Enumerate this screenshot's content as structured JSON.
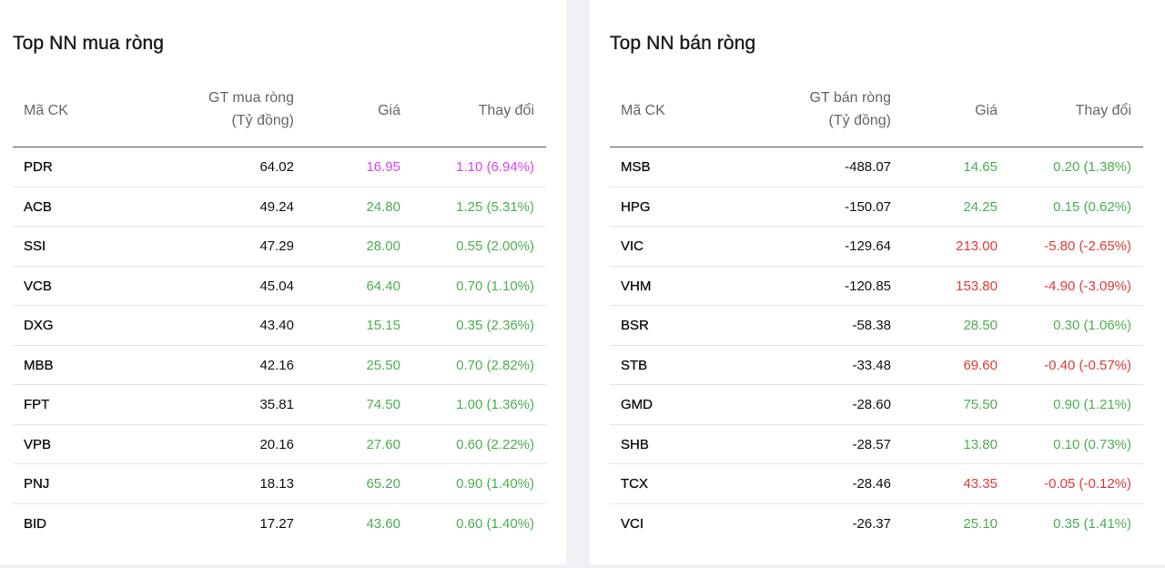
{
  "colors": {
    "up": "#4caf50",
    "down": "#e53935",
    "ceiling": "#e040fb"
  },
  "buy": {
    "title": "Top NN mua ròng",
    "headers": {
      "symbol": "Mã CK",
      "value_line1": "GT mua ròng",
      "value_line2": "(Tỷ đồng)",
      "price": "Giá",
      "change": "Thay đổi"
    },
    "rows": [
      {
        "symbol": "PDR",
        "value": "64.02",
        "price": "16.95",
        "change": "1.10 (6.94%)",
        "trend": "ceil"
      },
      {
        "symbol": "ACB",
        "value": "49.24",
        "price": "24.80",
        "change": "1.25 (5.31%)",
        "trend": "up"
      },
      {
        "symbol": "SSI",
        "value": "47.29",
        "price": "28.00",
        "change": "0.55 (2.00%)",
        "trend": "up"
      },
      {
        "symbol": "VCB",
        "value": "45.04",
        "price": "64.40",
        "change": "0.70 (1.10%)",
        "trend": "up"
      },
      {
        "symbol": "DXG",
        "value": "43.40",
        "price": "15.15",
        "change": "0.35 (2.36%)",
        "trend": "up"
      },
      {
        "symbol": "MBB",
        "value": "42.16",
        "price": "25.50",
        "change": "0.70 (2.82%)",
        "trend": "up"
      },
      {
        "symbol": "FPT",
        "value": "35.81",
        "price": "74.50",
        "change": "1.00 (1.36%)",
        "trend": "up"
      },
      {
        "symbol": "VPB",
        "value": "20.16",
        "price": "27.60",
        "change": "0.60 (2.22%)",
        "trend": "up"
      },
      {
        "symbol": "PNJ",
        "value": "18.13",
        "price": "65.20",
        "change": "0.90 (1.40%)",
        "trend": "up"
      },
      {
        "symbol": "BID",
        "value": "17.27",
        "price": "43.60",
        "change": "0.60 (1.40%)",
        "trend": "up"
      }
    ]
  },
  "sell": {
    "title": "Top NN bán ròng",
    "headers": {
      "symbol": "Mã CK",
      "value_line1": "GT bán ròng",
      "value_line2": "(Tỷ đồng)",
      "price": "Giá",
      "change": "Thay đổi"
    },
    "rows": [
      {
        "symbol": "MSB",
        "value": "-488.07",
        "price": "14.65",
        "change": "0.20 (1.38%)",
        "trend": "up"
      },
      {
        "symbol": "HPG",
        "value": "-150.07",
        "price": "24.25",
        "change": "0.15 (0.62%)",
        "trend": "up"
      },
      {
        "symbol": "VIC",
        "value": "-129.64",
        "price": "213.00",
        "change": "-5.80 (-2.65%)",
        "trend": "down"
      },
      {
        "symbol": "VHM",
        "value": "-120.85",
        "price": "153.80",
        "change": "-4.90 (-3.09%)",
        "trend": "down"
      },
      {
        "symbol": "BSR",
        "value": "-58.38",
        "price": "28.50",
        "change": "0.30 (1.06%)",
        "trend": "up"
      },
      {
        "symbol": "STB",
        "value": "-33.48",
        "price": "69.60",
        "change": "-0.40 (-0.57%)",
        "trend": "down"
      },
      {
        "symbol": "GMD",
        "value": "-28.60",
        "price": "75.50",
        "change": "0.90 (1.21%)",
        "trend": "up"
      },
      {
        "symbol": "SHB",
        "value": "-28.57",
        "price": "13.80",
        "change": "0.10 (0.73%)",
        "trend": "up"
      },
      {
        "symbol": "TCX",
        "value": "-28.46",
        "price": "43.35",
        "change": "-0.05 (-0.12%)",
        "trend": "down"
      },
      {
        "symbol": "VCI",
        "value": "-26.37",
        "price": "25.10",
        "change": "0.35 (1.41%)",
        "trend": "up"
      }
    ]
  }
}
